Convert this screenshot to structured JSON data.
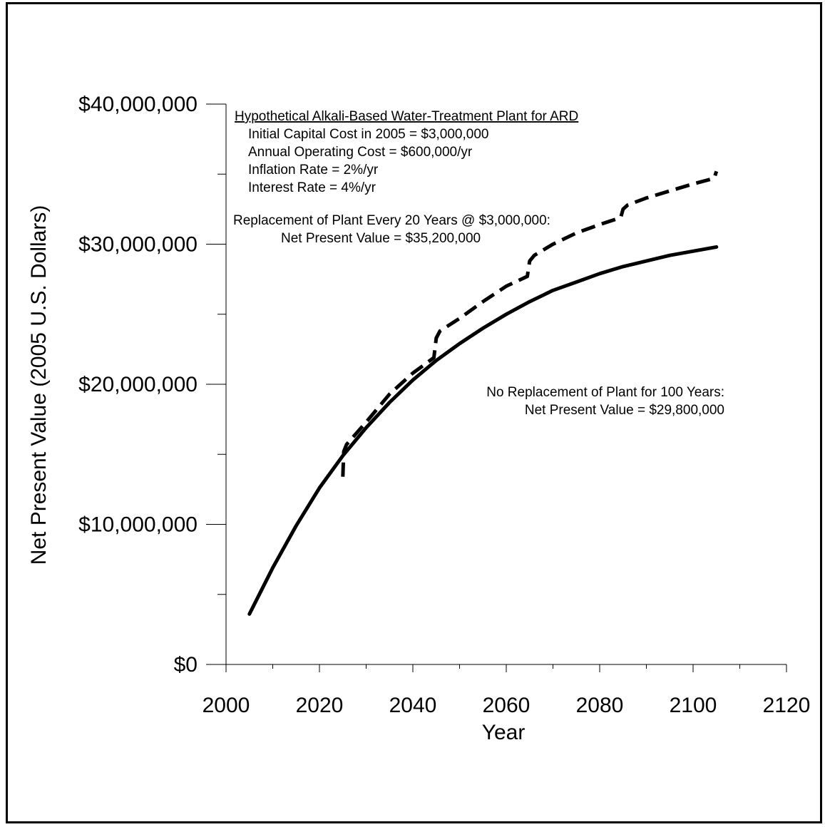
{
  "chart_data": {
    "type": "line",
    "xlabel": "Year",
    "ylabel": "Net Present Value (2005 U.S. Dollars)",
    "xlim": [
      2000,
      2120
    ],
    "ylim": [
      0,
      40000000
    ],
    "x_ticks": [
      2000,
      2020,
      2040,
      2060,
      2080,
      2100,
      2120
    ],
    "x_tick_labels": [
      "2000",
      "2020",
      "2040",
      "2060",
      "2080",
      "2100",
      "2120"
    ],
    "y_ticks": [
      0,
      10000000,
      20000000,
      30000000,
      40000000
    ],
    "y_tick_labels": [
      "$0",
      "$10,000,000",
      "$20,000,000",
      "$30,000,000",
      "$40,000,000"
    ],
    "grid": false,
    "legend": "none",
    "series": [
      {
        "style": "solid",
        "color": "#000000",
        "x": [
          2005,
          2010,
          2015,
          2020,
          2025,
          2030,
          2035,
          2040,
          2045,
          2050,
          2055,
          2060,
          2065,
          2070,
          2075,
          2080,
          2085,
          2090,
          2095,
          2100,
          2105
        ],
        "y": [
          3600000,
          6900000,
          9900000,
          12600000,
          14900000,
          16900000,
          18700000,
          20300000,
          21700000,
          22900000,
          24000000,
          25000000,
          25900000,
          26700000,
          27300000,
          27900000,
          28400000,
          28800000,
          29200000,
          29500000,
          29800000
        ]
      },
      {
        "style": "dashed",
        "color": "#000000",
        "x": [
          2025,
          2025.2,
          2025.8,
          2030,
          2035,
          2040,
          2044.5,
          2045,
          2045.8,
          2050,
          2055,
          2060,
          2064.5,
          2065,
          2066,
          2070,
          2075,
          2080,
          2084.5,
          2085,
          2086,
          2090,
          2095,
          2100,
          2104.5,
          2105
        ],
        "y": [
          13400000,
          15200000,
          15700000,
          17300000,
          19300000,
          20800000,
          21900000,
          23300000,
          23800000,
          24700000,
          25900000,
          27000000,
          27700000,
          28800000,
          29200000,
          30000000,
          30800000,
          31400000,
          31900000,
          32500000,
          32800000,
          33300000,
          33800000,
          34300000,
          34700000,
          35200000
        ]
      }
    ]
  },
  "annotations": {
    "title_block": {
      "heading": "Hypothetical Alkali-Based Water-Treatment Plant for ARD",
      "line1": "Initial Capital Cost in 2005 = $3,000,000",
      "line2": "Annual Operating Cost = $600,000/yr",
      "line3": "Inflation Rate = 2%/yr",
      "line4": "Interest Rate = 4%/yr"
    },
    "replacement": {
      "line1": "Replacement of Plant Every 20 Years @ $3,000,000:",
      "line2": "Net Present Value = $35,200,000"
    },
    "no_replacement": {
      "line1": "No Replacement of Plant for 100 Years:",
      "line2": "Net Present Value = $29,800,000"
    }
  }
}
